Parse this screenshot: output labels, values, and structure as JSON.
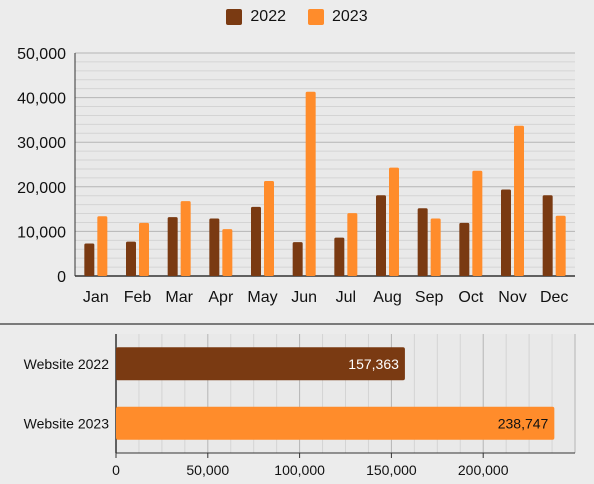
{
  "colors": {
    "s2022": "#7a3a12",
    "s2023": "#ff8c2b",
    "grid": "#bfbfbf",
    "axis": "#333333"
  },
  "legend": [
    {
      "label": "2022",
      "color": "#7a3a12"
    },
    {
      "label": "2023",
      "color": "#ff8c2b"
    }
  ],
  "chart_data": [
    {
      "type": "bar",
      "orientation": "vertical",
      "categories": [
        "Jan",
        "Feb",
        "Mar",
        "Apr",
        "May",
        "Jun",
        "Jul",
        "Aug",
        "Sep",
        "Oct",
        "Nov",
        "Dec"
      ],
      "series": [
        {
          "name": "2022",
          "values": [
            7300,
            7700,
            13200,
            12900,
            15500,
            7600,
            8600,
            18100,
            15200,
            11900,
            19400,
            18100
          ]
        },
        {
          "name": "2023",
          "values": [
            13400,
            11900,
            16800,
            10500,
            21300,
            41300,
            14100,
            24300,
            12900,
            23600,
            33700,
            13500
          ]
        }
      ],
      "yticks": [
        "0",
        "10,000",
        "20,000",
        "30,000",
        "40,000",
        "50,000"
      ],
      "ylim": [
        0,
        50000
      ],
      "grid": true,
      "legend_position": "top-center"
    },
    {
      "type": "bar",
      "orientation": "horizontal",
      "categories": [
        "Website 2022",
        "Website 2023"
      ],
      "values": [
        157363,
        238747
      ],
      "value_labels": [
        "157,363",
        "238,747"
      ],
      "xticks": [
        "0",
        "50,000",
        "100,000",
        "150,000",
        "200,000"
      ],
      "xlim": [
        0,
        250000
      ],
      "grid": true
    }
  ]
}
